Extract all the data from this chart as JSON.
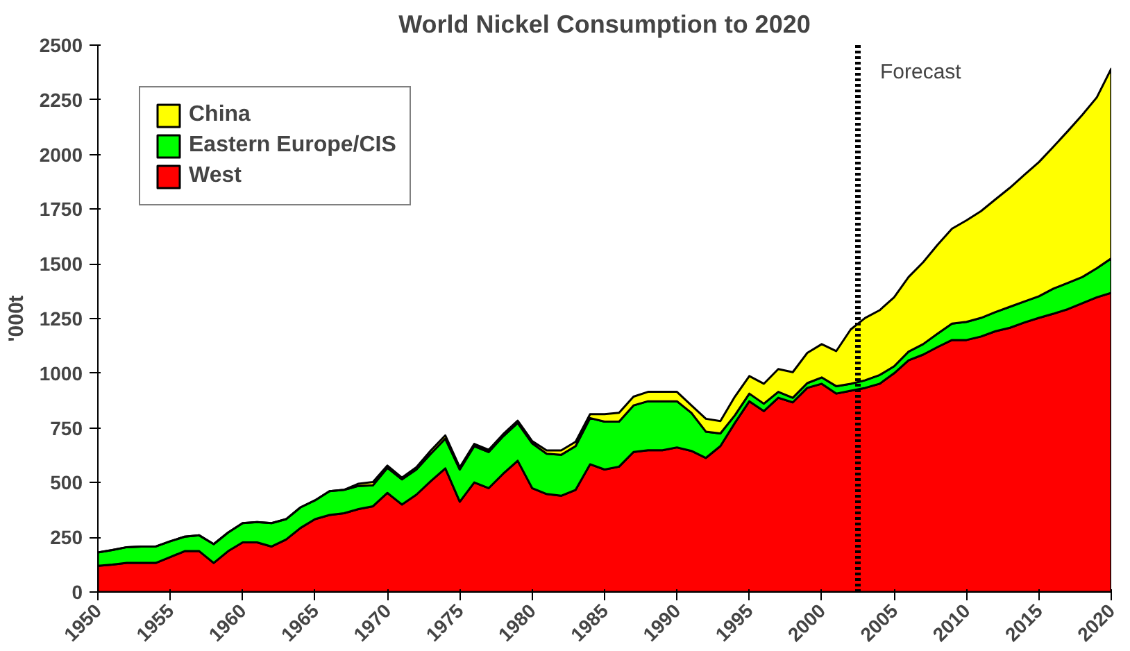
{
  "chart_data": {
    "type": "area",
    "stacked": true,
    "title": "World Nickel Consumption to 2020",
    "ylabel": "'000t",
    "x": [
      1950,
      1951,
      1952,
      1953,
      1954,
      1955,
      1956,
      1957,
      1958,
      1959,
      1960,
      1961,
      1962,
      1963,
      1964,
      1965,
      1966,
      1967,
      1968,
      1969,
      1970,
      1971,
      1972,
      1973,
      1974,
      1975,
      1976,
      1977,
      1978,
      1979,
      1980,
      1981,
      1982,
      1983,
      1984,
      1985,
      1986,
      1987,
      1988,
      1989,
      1990,
      1991,
      1992,
      1993,
      1994,
      1995,
      1996,
      1997,
      1998,
      1999,
      2000,
      2001,
      2002,
      2003,
      2004,
      2005,
      2006,
      2007,
      2008,
      2009,
      2010,
      2011,
      2012,
      2013,
      2014,
      2015,
      2016,
      2017,
      2018,
      2019,
      2020
    ],
    "series": [
      {
        "name": "West",
        "color": "#ff0000",
        "values": [
          120,
          125,
          133,
          133,
          133,
          160,
          187,
          187,
          133,
          187,
          227,
          227,
          208,
          240,
          293,
          333,
          352,
          360,
          379,
          392,
          453,
          400,
          445,
          507,
          565,
          413,
          501,
          475,
          541,
          600,
          475,
          448,
          440,
          467,
          584,
          560,
          573,
          640,
          648,
          648,
          661,
          645,
          613,
          667,
          773,
          872,
          827,
          888,
          867,
          933,
          952,
          907,
          920,
          933,
          952,
          1000,
          1059,
          1085,
          1120,
          1152,
          1152,
          1168,
          1192,
          1208,
          1232,
          1253,
          1272,
          1293,
          1320,
          1347,
          1368
        ]
      },
      {
        "name": "Eastern Europe/CIS",
        "color": "#00ff00",
        "values": [
          61,
          67,
          72,
          75,
          75,
          72,
          66,
          72,
          86,
          85,
          88,
          93,
          107,
          93,
          94,
          86,
          109,
          107,
          106,
          96,
          115,
          115,
          115,
          125,
          136,
          147,
          166,
          165,
          171,
          173,
          205,
          184,
          187,
          200,
          211,
          219,
          206,
          213,
          224,
          224,
          211,
          174,
          120,
          58,
          35,
          35,
          34,
          27,
          21,
          22,
          29,
          34,
          32,
          35,
          40,
          32,
          40,
          48,
          61,
          75,
          83,
          85,
          88,
          96,
          96,
          99,
          115,
          120,
          120,
          133,
          157
        ]
      },
      {
        "name": "China",
        "color": "#ffff00",
        "values": [
          0,
          0,
          0,
          0,
          0,
          0,
          0,
          0,
          0,
          0,
          0,
          0,
          0,
          0,
          0,
          0,
          0,
          0,
          10,
          15,
          10,
          8,
          10,
          15,
          15,
          10,
          10,
          10,
          10,
          10,
          10,
          15,
          20,
          20,
          18,
          34,
          40,
          40,
          43,
          43,
          43,
          34,
          59,
          56,
          85,
          80,
          91,
          104,
          117,
          138,
          152,
          160,
          248,
          285,
          296,
          315,
          341,
          374,
          406,
          434,
          464,
          488,
          515,
          544,
          579,
          613,
          648,
          694,
          741,
          781,
          867
        ]
      }
    ],
    "xlim": [
      1950,
      2020
    ],
    "xticks": [
      1950,
      1955,
      1960,
      1965,
      1970,
      1975,
      1980,
      1985,
      1990,
      1995,
      2000,
      2005,
      2010,
      2015,
      2020
    ],
    "ylim": [
      0,
      2500
    ],
    "yticks": [
      0,
      250,
      500,
      750,
      1000,
      1250,
      1500,
      1750,
      2000,
      2250,
      2500
    ],
    "ref_lines": [
      {
        "axis": "x",
        "value": 2002.5,
        "label": "Forecast",
        "color": "#000000",
        "line_style": "dotted"
      }
    ],
    "legend": "top left",
    "grid": false
  }
}
